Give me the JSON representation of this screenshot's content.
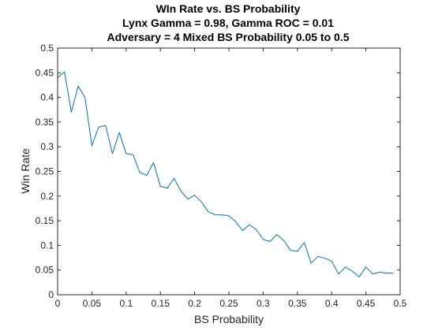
{
  "chart_data": {
    "type": "line",
    "title": [
      "WIn Rate vs. BS Probability",
      "Lynx Gamma = 0.98, Gamma ROC = 0.01",
      "Adversary = 4 Mixed BS Probability 0.05 to 0.5"
    ],
    "xlabel": "BS Probability",
    "ylabel": "Win Rate",
    "xlim": [
      0,
      0.5
    ],
    "ylim": [
      0,
      0.5
    ],
    "xticks": [
      0,
      0.05,
      0.1,
      0.15,
      0.2,
      0.25,
      0.3,
      0.35,
      0.4,
      0.45,
      0.5
    ],
    "xtick_labels": [
      "0",
      "0.05",
      "0.1",
      "0.15",
      "0.2",
      "0.25",
      "0.3",
      "0.35",
      "0.4",
      "0.45",
      "0.5"
    ],
    "yticks": [
      0,
      0.05,
      0.1,
      0.15,
      0.2,
      0.25,
      0.3,
      0.35,
      0.4,
      0.45,
      0.5
    ],
    "ytick_labels": [
      "0",
      "0.05",
      "0.1",
      "0.15",
      "0.2",
      "0.25",
      "0.3",
      "0.35",
      "0.4",
      "0.45",
      "0.5"
    ],
    "grid": false,
    "line_color": "#0072BD",
    "series": [
      {
        "x": [
          0,
          0.01,
          0.02,
          0.03,
          0.04,
          0.05,
          0.06,
          0.07,
          0.08,
          0.09,
          0.1,
          0.11,
          0.12,
          0.13,
          0.14,
          0.15,
          0.16,
          0.17,
          0.18,
          0.19,
          0.2,
          0.21,
          0.22,
          0.23,
          0.24,
          0.25,
          0.26,
          0.27,
          0.28,
          0.29,
          0.3,
          0.31,
          0.32,
          0.33,
          0.34,
          0.35,
          0.36,
          0.37,
          0.38,
          0.39,
          0.4,
          0.41,
          0.42,
          0.43,
          0.44,
          0.45,
          0.46,
          0.47,
          0.48,
          0.49
        ],
        "values": [
          0.44,
          0.452,
          0.37,
          0.423,
          0.4,
          0.302,
          0.34,
          0.343,
          0.286,
          0.329,
          0.286,
          0.284,
          0.248,
          0.242,
          0.268,
          0.22,
          0.216,
          0.236,
          0.21,
          0.194,
          0.202,
          0.188,
          0.168,
          0.162,
          0.162,
          0.16,
          0.148,
          0.13,
          0.142,
          0.132,
          0.112,
          0.108,
          0.122,
          0.11,
          0.09,
          0.088,
          0.106,
          0.064,
          0.078,
          0.074,
          0.068,
          0.042,
          0.056,
          0.048,
          0.036,
          0.056,
          0.042,
          0.046,
          0.044,
          0.044
        ]
      }
    ]
  }
}
